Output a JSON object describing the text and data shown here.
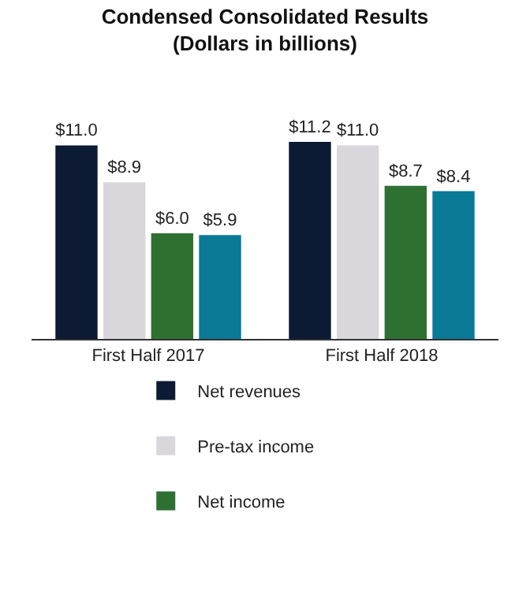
{
  "chart_data": {
    "type": "bar",
    "title": "Condensed Consolidated Results\n(Dollars in billions)",
    "categories": [
      "First Half 2017",
      "First Half 2018"
    ],
    "series": [
      {
        "name": "Net revenues",
        "color": "#0c1a33",
        "values": [
          11.0,
          11.2
        ],
        "value_labels": [
          "$11.0",
          "$11.2"
        ]
      },
      {
        "name": "Pre-tax income",
        "color": "#d9d7dc",
        "values": [
          8.9,
          11.0
        ],
        "value_labels": [
          "$8.9",
          "$11.0"
        ]
      },
      {
        "name": "Net income",
        "color": "#2e7032",
        "values": [
          6.0,
          8.7
        ],
        "value_labels": [
          "$6.0",
          "$8.7"
        ]
      },
      {
        "color": "#0a7a96",
        "values": [
          5.9,
          8.4
        ],
        "value_labels": [
          "$5.9",
          "$8.4"
        ]
      }
    ],
    "legend": "bottom"
  }
}
